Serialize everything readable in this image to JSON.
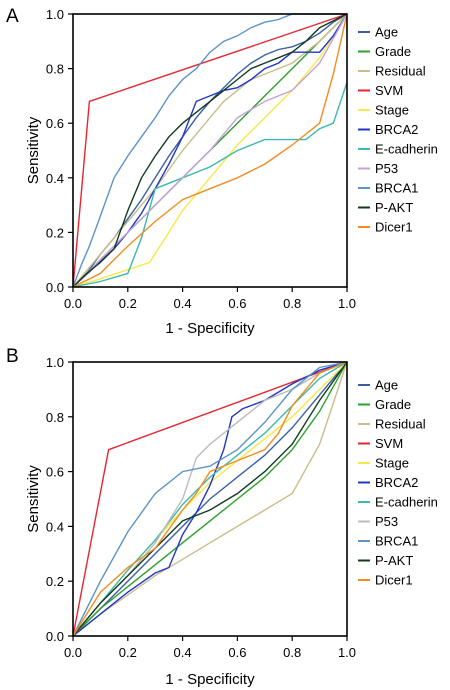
{
  "chart_data": [
    {
      "type": "line",
      "panel_label": "A",
      "xlabel": "1 - Specificity",
      "ylabel": "Sensitivity",
      "xlim": [
        0,
        1
      ],
      "ylim": [
        0,
        1
      ],
      "xticks": [
        "0.0",
        "0.2",
        "0.4",
        "0.6",
        "0.8",
        "1.0"
      ],
      "yticks": [
        "0.0",
        "0.2",
        "0.4",
        "0.6",
        "0.8",
        "1.0"
      ],
      "grid": false,
      "legend_position": "right",
      "series": [
        {
          "name": "Age",
          "color": "#3a5fa8",
          "x": [
            0,
            0.05,
            0.1,
            0.15,
            0.2,
            0.25,
            0.3,
            0.35,
            0.4,
            0.45,
            0.5,
            0.55,
            0.6,
            0.65,
            0.7,
            0.75,
            0.8,
            0.85,
            0.9,
            0.95,
            1.0
          ],
          "y": [
            0,
            0.05,
            0.12,
            0.18,
            0.25,
            0.32,
            0.4,
            0.48,
            0.55,
            0.62,
            0.68,
            0.73,
            0.78,
            0.82,
            0.85,
            0.87,
            0.88,
            0.9,
            0.93,
            0.97,
            1.0
          ]
        },
        {
          "name": "Grade",
          "color": "#2ca02c",
          "x": [
            0,
            0.1,
            0.2,
            0.3,
            0.4,
            0.5,
            0.6,
            0.7,
            0.8,
            0.9,
            1.0
          ],
          "y": [
            0,
            0.1,
            0.2,
            0.3,
            0.4,
            0.5,
            0.6,
            0.7,
            0.8,
            0.9,
            1.0
          ]
        },
        {
          "name": "Residual",
          "color": "#c8be8a",
          "x": [
            0,
            0.1,
            0.2,
            0.3,
            0.4,
            0.5,
            0.55,
            0.6,
            0.65,
            0.7,
            0.8,
            0.9,
            1.0
          ],
          "y": [
            0,
            0.12,
            0.24,
            0.36,
            0.5,
            0.62,
            0.68,
            0.72,
            0.76,
            0.78,
            0.82,
            0.9,
            1.0
          ]
        },
        {
          "name": "SVM",
          "color": "#e8252f",
          "x": [
            0,
            0.06,
            1.0
          ],
          "y": [
            0,
            0.68,
            1.0
          ]
        },
        {
          "name": "Stage",
          "color": "#f5e94a",
          "x": [
            0,
            0.1,
            0.28,
            0.4,
            0.5,
            0.6,
            0.7,
            0.8,
            0.9,
            1.0
          ],
          "y": [
            0,
            0.03,
            0.09,
            0.28,
            0.4,
            0.52,
            0.62,
            0.72,
            0.84,
            1.0
          ]
        },
        {
          "name": "BRCA2",
          "color": "#2335c8",
          "x": [
            0,
            0.15,
            0.2,
            0.25,
            0.3,
            0.35,
            0.4,
            0.45,
            0.5,
            0.55,
            0.6,
            0.65,
            0.7,
            0.75,
            0.8,
            0.85,
            0.9,
            0.95,
            1.0
          ],
          "y": [
            0,
            0.14,
            0.2,
            0.27,
            0.36,
            0.45,
            0.55,
            0.68,
            0.7,
            0.72,
            0.73,
            0.76,
            0.8,
            0.82,
            0.86,
            0.86,
            0.86,
            0.92,
            1.0
          ]
        },
        {
          "name": "E-cadherin",
          "color": "#3bb8b0",
          "x": [
            0,
            0.1,
            0.2,
            0.25,
            0.3,
            0.4,
            0.5,
            0.6,
            0.7,
            0.8,
            0.85,
            0.9,
            0.95,
            1.0
          ],
          "y": [
            0,
            0.02,
            0.05,
            0.18,
            0.36,
            0.4,
            0.44,
            0.5,
            0.54,
            0.54,
            0.54,
            0.58,
            0.6,
            0.75
          ]
        },
        {
          "name": "P53",
          "color": "#c4a2d8",
          "x": [
            0,
            0.1,
            0.2,
            0.3,
            0.4,
            0.5,
            0.6,
            0.7,
            0.8,
            0.9,
            1.0
          ],
          "y": [
            0,
            0.1,
            0.2,
            0.3,
            0.4,
            0.5,
            0.62,
            0.68,
            0.72,
            0.82,
            1.0
          ]
        },
        {
          "name": "BRCA1",
          "color": "#5b93c9",
          "x": [
            0,
            0.03,
            0.06,
            0.1,
            0.15,
            0.2,
            0.25,
            0.3,
            0.35,
            0.4,
            0.45,
            0.5,
            0.55,
            0.6,
            0.65,
            0.7,
            0.75,
            0.8,
            1.0
          ],
          "y": [
            0,
            0.08,
            0.15,
            0.26,
            0.4,
            0.48,
            0.55,
            0.62,
            0.7,
            0.76,
            0.8,
            0.86,
            0.9,
            0.92,
            0.95,
            0.97,
            0.98,
            1.0,
            1.0
          ]
        },
        {
          "name": "P-AKT",
          "color": "#123b1e",
          "x": [
            0,
            0.05,
            0.1,
            0.15,
            0.2,
            0.25,
            0.3,
            0.35,
            0.4,
            0.45,
            0.5,
            0.55,
            0.6,
            0.65,
            0.7,
            0.75,
            0.8,
            0.85,
            0.9,
            1.0
          ],
          "y": [
            0,
            0.05,
            0.09,
            0.14,
            0.28,
            0.4,
            0.48,
            0.55,
            0.6,
            0.64,
            0.68,
            0.72,
            0.76,
            0.8,
            0.82,
            0.84,
            0.86,
            0.9,
            0.95,
            1.0
          ]
        },
        {
          "name": "Dicer1",
          "color": "#f28c1e",
          "x": [
            0,
            0.1,
            0.2,
            0.3,
            0.4,
            0.5,
            0.6,
            0.7,
            0.8,
            0.9,
            0.95,
            1.0
          ],
          "y": [
            0,
            0.05,
            0.15,
            0.24,
            0.32,
            0.36,
            0.4,
            0.45,
            0.52,
            0.6,
            0.78,
            1.0
          ]
        }
      ]
    },
    {
      "type": "line",
      "panel_label": "B",
      "xlabel": "1 - Specificity",
      "ylabel": "Sensitivity",
      "xlim": [
        0,
        1
      ],
      "ylim": [
        0,
        1
      ],
      "xticks": [
        "0.0",
        "0.2",
        "0.4",
        "0.6",
        "0.8",
        "1.0"
      ],
      "yticks": [
        "0.0",
        "0.2",
        "0.4",
        "0.6",
        "0.8",
        "1.0"
      ],
      "grid": false,
      "legend_position": "right",
      "series": [
        {
          "name": "Age",
          "color": "#3a5fa8",
          "x": [
            0,
            0.1,
            0.2,
            0.3,
            0.4,
            0.5,
            0.6,
            0.7,
            0.8,
            0.9,
            1.0
          ],
          "y": [
            0,
            0.1,
            0.2,
            0.3,
            0.4,
            0.5,
            0.58,
            0.66,
            0.76,
            0.88,
            1.0
          ]
        },
        {
          "name": "Grade",
          "color": "#2ca02c",
          "x": [
            0,
            0.1,
            0.2,
            0.3,
            0.4,
            0.5,
            0.6,
            0.7,
            0.8,
            0.9,
            1.0
          ],
          "y": [
            0,
            0.1,
            0.18,
            0.26,
            0.34,
            0.42,
            0.5,
            0.58,
            0.68,
            0.82,
            1.0
          ]
        },
        {
          "name": "Residual",
          "color": "#c8be8a",
          "x": [
            0,
            0.1,
            0.2,
            0.3,
            0.4,
            0.5,
            0.6,
            0.7,
            0.8,
            0.9,
            1.0
          ],
          "y": [
            0,
            0.08,
            0.15,
            0.22,
            0.28,
            0.34,
            0.4,
            0.46,
            0.52,
            0.7,
            1.0
          ]
        },
        {
          "name": "SVM",
          "color": "#e8252f",
          "x": [
            0,
            0.13,
            1.0
          ],
          "y": [
            0,
            0.68,
            1.0
          ]
        },
        {
          "name": "Stage",
          "color": "#f5e94a",
          "x": [
            0,
            0.1,
            0.2,
            0.3,
            0.4,
            0.5,
            0.6,
            0.7,
            0.8,
            0.9,
            1.0
          ],
          "y": [
            0,
            0.12,
            0.24,
            0.35,
            0.46,
            0.56,
            0.64,
            0.72,
            0.8,
            0.9,
            1.0
          ]
        },
        {
          "name": "BRCA2",
          "color": "#2335c8",
          "x": [
            0,
            0.1,
            0.2,
            0.3,
            0.35,
            0.4,
            0.45,
            0.5,
            0.55,
            0.58,
            0.62,
            0.7,
            0.8,
            0.9,
            1.0
          ],
          "y": [
            0,
            0.08,
            0.16,
            0.23,
            0.25,
            0.37,
            0.45,
            0.55,
            0.68,
            0.8,
            0.83,
            0.86,
            0.92,
            0.97,
            1.0
          ]
        },
        {
          "name": "E-cadherin",
          "color": "#3bb8b0",
          "x": [
            0,
            0.1,
            0.2,
            0.3,
            0.4,
            0.5,
            0.6,
            0.7,
            0.8,
            0.9,
            1.0
          ],
          "y": [
            0,
            0.12,
            0.24,
            0.35,
            0.48,
            0.58,
            0.66,
            0.74,
            0.84,
            0.94,
            1.0
          ]
        },
        {
          "name": "P53",
          "color": "#bcbcbc",
          "x": [
            0,
            0.1,
            0.2,
            0.3,
            0.4,
            0.45,
            0.5,
            0.6,
            0.7,
            0.8,
            0.9,
            1.0
          ],
          "y": [
            0,
            0.12,
            0.22,
            0.34,
            0.5,
            0.65,
            0.7,
            0.78,
            0.86,
            0.9,
            0.96,
            1.0
          ]
        },
        {
          "name": "BRCA1",
          "color": "#5b93c9",
          "x": [
            0,
            0.1,
            0.2,
            0.3,
            0.4,
            0.5,
            0.6,
            0.7,
            0.8,
            0.9,
            1.0
          ],
          "y": [
            0,
            0.2,
            0.38,
            0.52,
            0.6,
            0.62,
            0.68,
            0.78,
            0.9,
            0.98,
            1.0
          ]
        },
        {
          "name": "P-AKT",
          "color": "#123b1e",
          "x": [
            0,
            0.1,
            0.2,
            0.3,
            0.4,
            0.5,
            0.6,
            0.7,
            0.8,
            0.9,
            1.0
          ],
          "y": [
            0,
            0.12,
            0.22,
            0.32,
            0.42,
            0.46,
            0.52,
            0.6,
            0.7,
            0.86,
            1.0
          ]
        },
        {
          "name": "Dicer1",
          "color": "#f28c1e",
          "x": [
            0,
            0.1,
            0.2,
            0.3,
            0.4,
            0.45,
            0.5,
            0.6,
            0.7,
            0.75,
            0.8,
            0.9,
            1.0
          ],
          "y": [
            0,
            0.16,
            0.25,
            0.32,
            0.46,
            0.52,
            0.6,
            0.64,
            0.68,
            0.74,
            0.84,
            0.96,
            1.0
          ]
        }
      ]
    }
  ]
}
